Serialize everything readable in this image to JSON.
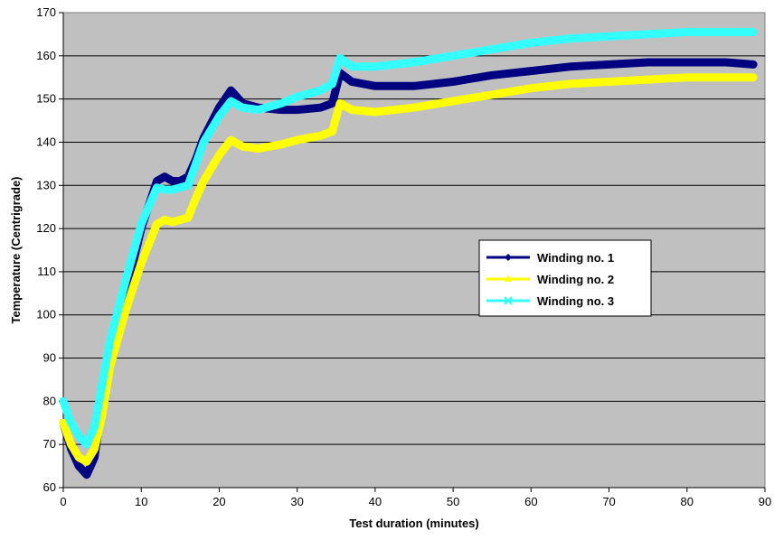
{
  "chart_data": {
    "type": "line",
    "title": "",
    "xlabel": "Test duration (minutes)",
    "ylabel": "Temperature (Centrigrade)",
    "xlim": [
      0,
      90
    ],
    "ylim": [
      60,
      170
    ],
    "xticks": [
      0,
      10,
      20,
      30,
      40,
      50,
      60,
      70,
      80,
      90
    ],
    "yticks": [
      60,
      70,
      80,
      90,
      100,
      110,
      120,
      130,
      140,
      150,
      160,
      170
    ],
    "grid": "horizontal",
    "legend_position": "right",
    "plot_background": "#c0c0c0",
    "series": [
      {
        "name": "Winding no. 1",
        "color": "#000080",
        "marker": "diamond",
        "x": [
          0,
          1,
          2,
          3,
          4,
          5,
          6,
          8,
          10,
          12,
          13,
          14,
          15,
          16,
          17,
          18,
          20,
          21.5,
          23,
          25,
          28,
          30,
          33,
          34.5,
          35.5,
          37,
          40,
          45,
          50,
          55,
          60,
          65,
          70,
          75,
          80,
          85,
          88.5
        ],
        "y": [
          75,
          69,
          65,
          63,
          67,
          80,
          90,
          105,
          120,
          131,
          132,
          131,
          131,
          132,
          136,
          141,
          148,
          152,
          149,
          148,
          147.5,
          147.5,
          148,
          149,
          156,
          154,
          153,
          153,
          154,
          155.5,
          156.5,
          157.5,
          158,
          158.5,
          158.5,
          158.5,
          158
        ]
      },
      {
        "name": "Winding no. 2",
        "color": "#ffff00",
        "marker": "triangle",
        "x": [
          0,
          1,
          2,
          3,
          4,
          5,
          6,
          8,
          10,
          12,
          13,
          14,
          15,
          16,
          17,
          18,
          20,
          21.5,
          23,
          25,
          28,
          30,
          33,
          34.5,
          35.5,
          37,
          40,
          45,
          50,
          55,
          60,
          65,
          70,
          75,
          80,
          85,
          88.5
        ],
        "y": [
          75,
          70,
          67,
          66,
          69,
          77,
          88,
          101,
          112,
          121,
          122,
          121.5,
          122,
          122.5,
          127,
          131,
          137,
          140.5,
          139,
          138.5,
          139.5,
          140.5,
          141.5,
          142.5,
          149,
          147.5,
          147,
          148,
          149.5,
          151,
          152.5,
          153.5,
          154,
          154.5,
          155,
          155,
          155
        ]
      },
      {
        "name": "Winding no. 3",
        "color": "#33ffff",
        "marker": "x",
        "x": [
          0,
          1,
          2,
          3,
          4,
          5,
          6,
          8,
          10,
          12,
          13,
          14,
          15,
          16,
          17,
          18,
          20,
          21.5,
          23,
          25,
          28,
          30,
          33,
          34.5,
          35.5,
          37,
          40,
          45,
          50,
          55,
          60,
          65,
          70,
          75,
          80,
          85,
          88.5
        ],
        "y": [
          80,
          75,
          72,
          70,
          74,
          84,
          94,
          108,
          121,
          129.5,
          129,
          129,
          129.5,
          130,
          135,
          140,
          146,
          149.5,
          148,
          147.5,
          149,
          150.5,
          152,
          153.5,
          159.5,
          157.5,
          157.5,
          158.5,
          160,
          161.5,
          163,
          164,
          164.5,
          165,
          165.5,
          165.5,
          165.5
        ]
      }
    ]
  }
}
